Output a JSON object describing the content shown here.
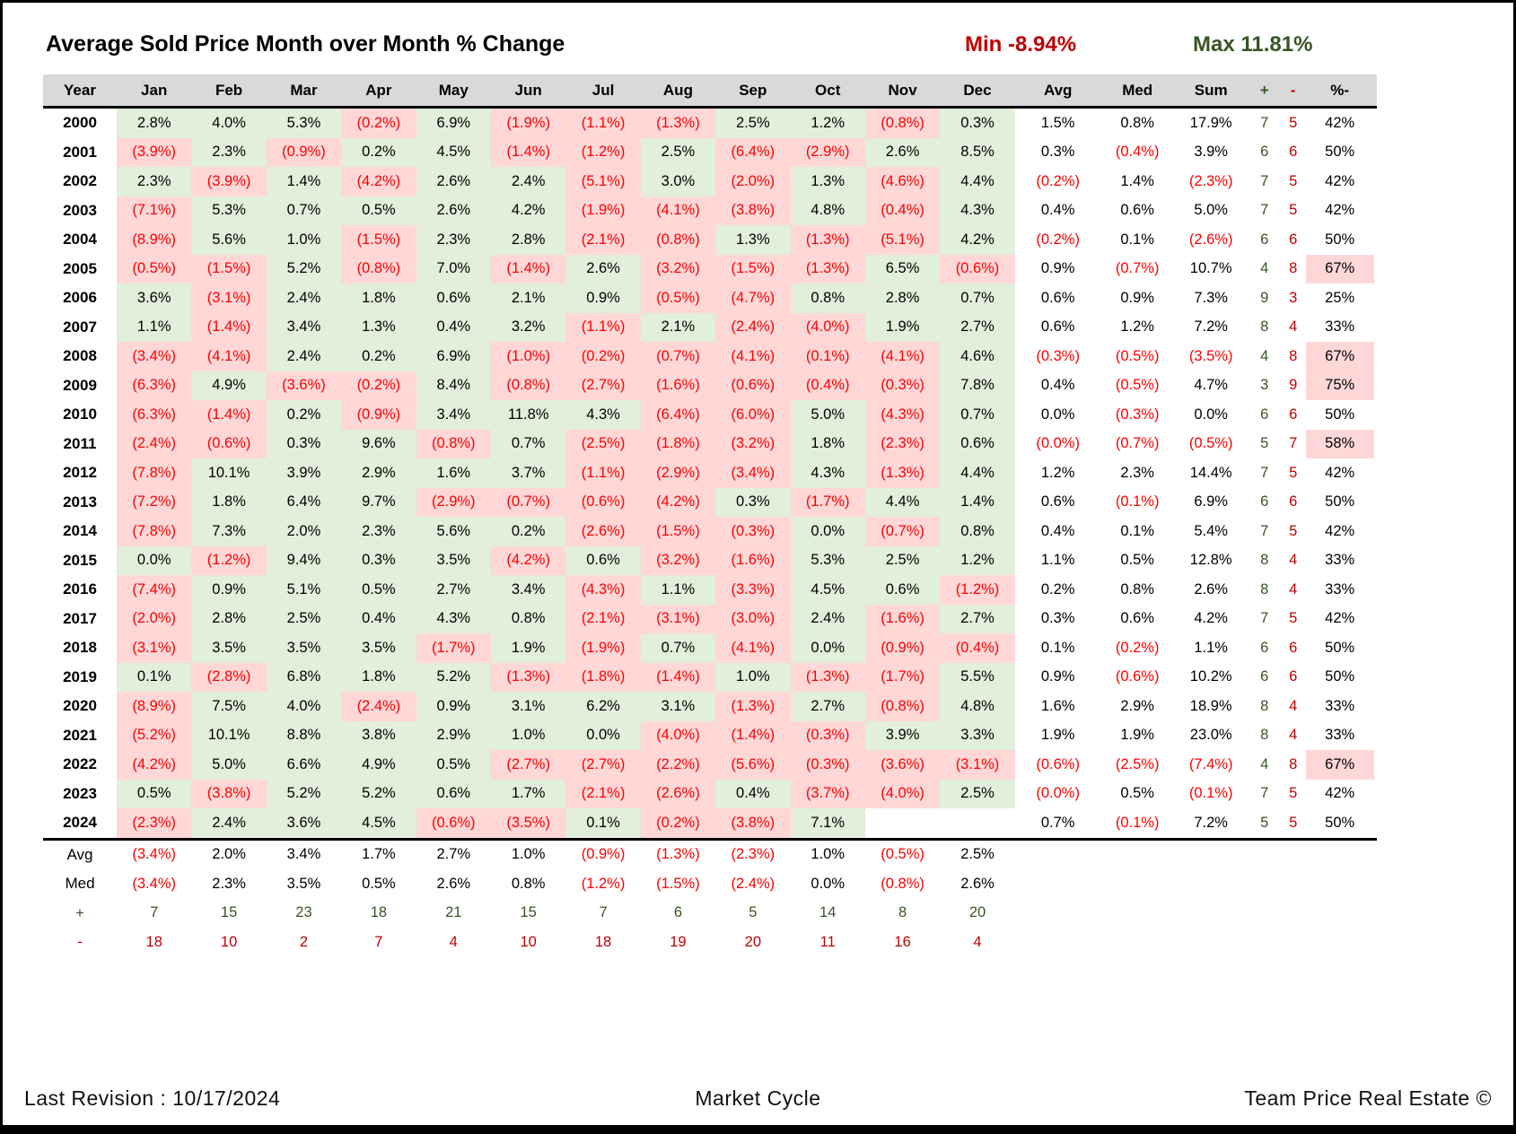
{
  "title": "Average Sold Price Month over Month % Change",
  "stats": {
    "min_label": "Min",
    "min_value": "-8.94%",
    "max_label": "Max",
    "max_value": "11.81%"
  },
  "colors": {
    "positive_bg": "#e2efda",
    "negative_bg": "#ffd7d7",
    "negative_text": "#ff0000",
    "plus_count": "#375623",
    "minus_count": "#c00000",
    "header_bg": "#d9d9d9",
    "min_color": "#c00000",
    "max_color": "#375623"
  },
  "chart_data": {
    "type": "table",
    "columns": [
      "Year",
      "Jan",
      "Feb",
      "Mar",
      "Apr",
      "May",
      "Jun",
      "Jul",
      "Aug",
      "Sep",
      "Oct",
      "Nov",
      "Dec",
      "Avg",
      "Med",
      "Sum",
      "+",
      "-",
      "%-"
    ],
    "rows": [
      {
        "year": "2000",
        "months": [
          "2.8%",
          "4.0%",
          "5.3%",
          "(0.2%)",
          "6.9%",
          "(1.9%)",
          "(1.1%)",
          "(1.3%)",
          "2.5%",
          "1.2%",
          "(0.8%)",
          "0.3%"
        ],
        "avg": "1.5%",
        "med": "0.8%",
        "sum": "17.9%",
        "plus": "7",
        "minus": "5",
        "pct_minus": "42%",
        "pct_minus_highlight": false
      },
      {
        "year": "2001",
        "months": [
          "(3.9%)",
          "2.3%",
          "(0.9%)",
          "0.2%",
          "4.5%",
          "(1.4%)",
          "(1.2%)",
          "2.5%",
          "(6.4%)",
          "(2.9%)",
          "2.6%",
          "8.5%"
        ],
        "avg": "0.3%",
        "med": "(0.4%)",
        "sum": "3.9%",
        "plus": "6",
        "minus": "6",
        "pct_minus": "50%",
        "pct_minus_highlight": false
      },
      {
        "year": "2002",
        "months": [
          "2.3%",
          "(3.9%)",
          "1.4%",
          "(4.2%)",
          "2.6%",
          "2.4%",
          "(5.1%)",
          "3.0%",
          "(2.0%)",
          "1.3%",
          "(4.6%)",
          "4.4%"
        ],
        "avg": "(0.2%)",
        "med": "1.4%",
        "sum": "(2.3%)",
        "plus": "7",
        "minus": "5",
        "pct_minus": "42%",
        "pct_minus_highlight": false
      },
      {
        "year": "2003",
        "months": [
          "(7.1%)",
          "5.3%",
          "0.7%",
          "0.5%",
          "2.6%",
          "4.2%",
          "(1.9%)",
          "(4.1%)",
          "(3.8%)",
          "4.8%",
          "(0.4%)",
          "4.3%"
        ],
        "avg": "0.4%",
        "med": "0.6%",
        "sum": "5.0%",
        "plus": "7",
        "minus": "5",
        "pct_minus": "42%",
        "pct_minus_highlight": false
      },
      {
        "year": "2004",
        "months": [
          "(8.9%)",
          "5.6%",
          "1.0%",
          "(1.5%)",
          "2.3%",
          "2.8%",
          "(2.1%)",
          "(0.8%)",
          "1.3%",
          "(1.3%)",
          "(5.1%)",
          "4.2%"
        ],
        "avg": "(0.2%)",
        "med": "0.1%",
        "sum": "(2.6%)",
        "plus": "6",
        "minus": "6",
        "pct_minus": "50%",
        "pct_minus_highlight": false
      },
      {
        "year": "2005",
        "months": [
          "(0.5%)",
          "(1.5%)",
          "5.2%",
          "(0.8%)",
          "7.0%",
          "(1.4%)",
          "2.6%",
          "(3.2%)",
          "(1.5%)",
          "(1.3%)",
          "6.5%",
          "(0.6%)"
        ],
        "avg": "0.9%",
        "med": "(0.7%)",
        "sum": "10.7%",
        "plus": "4",
        "minus": "8",
        "pct_minus": "67%",
        "pct_minus_highlight": true
      },
      {
        "year": "2006",
        "months": [
          "3.6%",
          "(3.1%)",
          "2.4%",
          "1.8%",
          "0.6%",
          "2.1%",
          "0.9%",
          "(0.5%)",
          "(4.7%)",
          "0.8%",
          "2.8%",
          "0.7%"
        ],
        "avg": "0.6%",
        "med": "0.9%",
        "sum": "7.3%",
        "plus": "9",
        "minus": "3",
        "pct_minus": "25%",
        "pct_minus_highlight": false
      },
      {
        "year": "2007",
        "months": [
          "1.1%",
          "(1.4%)",
          "3.4%",
          "1.3%",
          "0.4%",
          "3.2%",
          "(1.1%)",
          "2.1%",
          "(2.4%)",
          "(4.0%)",
          "1.9%",
          "2.7%"
        ],
        "avg": "0.6%",
        "med": "1.2%",
        "sum": "7.2%",
        "plus": "8",
        "minus": "4",
        "pct_minus": "33%",
        "pct_minus_highlight": false
      },
      {
        "year": "2008",
        "months": [
          "(3.4%)",
          "(4.1%)",
          "2.4%",
          "0.2%",
          "6.9%",
          "(1.0%)",
          "(0.2%)",
          "(0.7%)",
          "(4.1%)",
          "(0.1%)",
          "(4.1%)",
          "4.6%"
        ],
        "avg": "(0.3%)",
        "med": "(0.5%)",
        "sum": "(3.5%)",
        "plus": "4",
        "minus": "8",
        "pct_minus": "67%",
        "pct_minus_highlight": true
      },
      {
        "year": "2009",
        "months": [
          "(6.3%)",
          "4.9%",
          "(3.6%)",
          "(0.2%)",
          "8.4%",
          "(0.8%)",
          "(2.7%)",
          "(1.6%)",
          "(0.6%)",
          "(0.4%)",
          "(0.3%)",
          "7.8%"
        ],
        "avg": "0.4%",
        "med": "(0.5%)",
        "sum": "4.7%",
        "plus": "3",
        "minus": "9",
        "pct_minus": "75%",
        "pct_minus_highlight": true
      },
      {
        "year": "2010",
        "months": [
          "(6.3%)",
          "(1.4%)",
          "0.2%",
          "(0.9%)",
          "3.4%",
          "11.8%",
          "4.3%",
          "(6.4%)",
          "(6.0%)",
          "5.0%",
          "(4.3%)",
          "0.7%"
        ],
        "avg": "0.0%",
        "med": "(0.3%)",
        "sum": "0.0%",
        "plus": "6",
        "minus": "6",
        "pct_minus": "50%",
        "pct_minus_highlight": false
      },
      {
        "year": "2011",
        "months": [
          "(2.4%)",
          "(0.6%)",
          "0.3%",
          "9.6%",
          "(0.8%)",
          "0.7%",
          "(2.5%)",
          "(1.8%)",
          "(3.2%)",
          "1.8%",
          "(2.3%)",
          "0.6%"
        ],
        "avg": "(0.0%)",
        "med": "(0.7%)",
        "sum": "(0.5%)",
        "plus": "5",
        "minus": "7",
        "pct_minus": "58%",
        "pct_minus_highlight": true
      },
      {
        "year": "2012",
        "months": [
          "(7.8%)",
          "10.1%",
          "3.9%",
          "2.9%",
          "1.6%",
          "3.7%",
          "(1.1%)",
          "(2.9%)",
          "(3.4%)",
          "4.3%",
          "(1.3%)",
          "4.4%"
        ],
        "avg": "1.2%",
        "med": "2.3%",
        "sum": "14.4%",
        "plus": "7",
        "minus": "5",
        "pct_minus": "42%",
        "pct_minus_highlight": false
      },
      {
        "year": "2013",
        "months": [
          "(7.2%)",
          "1.8%",
          "6.4%",
          "9.7%",
          "(2.9%)",
          "(0.7%)",
          "(0.6%)",
          "(4.2%)",
          "0.3%",
          "(1.7%)",
          "4.4%",
          "1.4%"
        ],
        "avg": "0.6%",
        "med": "(0.1%)",
        "sum": "6.9%",
        "plus": "6",
        "minus": "6",
        "pct_minus": "50%",
        "pct_minus_highlight": false
      },
      {
        "year": "2014",
        "months": [
          "(7.8%)",
          "7.3%",
          "2.0%",
          "2.3%",
          "5.6%",
          "0.2%",
          "(2.6%)",
          "(1.5%)",
          "(0.3%)",
          "0.0%",
          "(0.7%)",
          "0.8%"
        ],
        "avg": "0.4%",
        "med": "0.1%",
        "sum": "5.4%",
        "plus": "7",
        "minus": "5",
        "pct_minus": "42%",
        "pct_minus_highlight": false
      },
      {
        "year": "2015",
        "months": [
          "0.0%",
          "(1.2%)",
          "9.4%",
          "0.3%",
          "3.5%",
          "(4.2%)",
          "0.6%",
          "(3.2%)",
          "(1.6%)",
          "5.3%",
          "2.5%",
          "1.2%"
        ],
        "avg": "1.1%",
        "med": "0.5%",
        "sum": "12.8%",
        "plus": "8",
        "minus": "4",
        "pct_minus": "33%",
        "pct_minus_highlight": false
      },
      {
        "year": "2016",
        "months": [
          "(7.4%)",
          "0.9%",
          "5.1%",
          "0.5%",
          "2.7%",
          "3.4%",
          "(4.3%)",
          "1.1%",
          "(3.3%)",
          "4.5%",
          "0.6%",
          "(1.2%)"
        ],
        "avg": "0.2%",
        "med": "0.8%",
        "sum": "2.6%",
        "plus": "8",
        "minus": "4",
        "pct_minus": "33%",
        "pct_minus_highlight": false
      },
      {
        "year": "2017",
        "months": [
          "(2.0%)",
          "2.8%",
          "2.5%",
          "0.4%",
          "4.3%",
          "0.8%",
          "(2.1%)",
          "(3.1%)",
          "(3.0%)",
          "2.4%",
          "(1.6%)",
          "2.7%"
        ],
        "avg": "0.3%",
        "med": "0.6%",
        "sum": "4.2%",
        "plus": "7",
        "minus": "5",
        "pct_minus": "42%",
        "pct_minus_highlight": false
      },
      {
        "year": "2018",
        "months": [
          "(3.1%)",
          "3.5%",
          "3.5%",
          "3.5%",
          "(1.7%)",
          "1.9%",
          "(1.9%)",
          "0.7%",
          "(4.1%)",
          "0.0%",
          "(0.9%)",
          "(0.4%)"
        ],
        "avg": "0.1%",
        "med": "(0.2%)",
        "sum": "1.1%",
        "plus": "6",
        "minus": "6",
        "pct_minus": "50%",
        "pct_minus_highlight": false
      },
      {
        "year": "2019",
        "months": [
          "0.1%",
          "(2.8%)",
          "6.8%",
          "1.8%",
          "5.2%",
          "(1.3%)",
          "(1.8%)",
          "(1.4%)",
          "1.0%",
          "(1.3%)",
          "(1.7%)",
          "5.5%"
        ],
        "avg": "0.9%",
        "med": "(0.6%)",
        "sum": "10.2%",
        "plus": "6",
        "minus": "6",
        "pct_minus": "50%",
        "pct_minus_highlight": false
      },
      {
        "year": "2020",
        "months": [
          "(8.9%)",
          "7.5%",
          "4.0%",
          "(2.4%)",
          "0.9%",
          "3.1%",
          "6.2%",
          "3.1%",
          "(1.3%)",
          "2.7%",
          "(0.8%)",
          "4.8%"
        ],
        "avg": "1.6%",
        "med": "2.9%",
        "sum": "18.9%",
        "plus": "8",
        "minus": "4",
        "pct_minus": "33%",
        "pct_minus_highlight": false
      },
      {
        "year": "2021",
        "months": [
          "(5.2%)",
          "10.1%",
          "8.8%",
          "3.8%",
          "2.9%",
          "1.0%",
          "0.0%",
          "(4.0%)",
          "(1.4%)",
          "(0.3%)",
          "3.9%",
          "3.3%"
        ],
        "avg": "1.9%",
        "med": "1.9%",
        "sum": "23.0%",
        "plus": "8",
        "minus": "4",
        "pct_minus": "33%",
        "pct_minus_highlight": false
      },
      {
        "year": "2022",
        "months": [
          "(4.2%)",
          "5.0%",
          "6.6%",
          "4.9%",
          "0.5%",
          "(2.7%)",
          "(2.7%)",
          "(2.2%)",
          "(5.6%)",
          "(0.3%)",
          "(3.6%)",
          "(3.1%)"
        ],
        "avg": "(0.6%)",
        "med": "(2.5%)",
        "sum": "(7.4%)",
        "plus": "4",
        "minus": "8",
        "pct_minus": "67%",
        "pct_minus_highlight": true
      },
      {
        "year": "2023",
        "months": [
          "0.5%",
          "(3.8%)",
          "5.2%",
          "5.2%",
          "0.6%",
          "1.7%",
          "(2.1%)",
          "(2.6%)",
          "0.4%",
          "(3.7%)",
          "(4.0%)",
          "2.5%"
        ],
        "avg": "(0.0%)",
        "med": "0.5%",
        "sum": "(0.1%)",
        "plus": "7",
        "minus": "5",
        "pct_minus": "42%",
        "pct_minus_highlight": false
      },
      {
        "year": "2024",
        "months": [
          "(2.3%)",
          "2.4%",
          "3.6%",
          "4.5%",
          "(0.6%)",
          "(3.5%)",
          "0.1%",
          "(0.2%)",
          "(3.8%)",
          "7.1%",
          "",
          ""
        ],
        "avg": "0.7%",
        "med": "(0.1%)",
        "sum": "7.2%",
        "plus": "5",
        "minus": "5",
        "pct_minus": "50%",
        "pct_minus_highlight": false
      }
    ],
    "summary": [
      {
        "label": "Avg",
        "kind": "value",
        "values": [
          "(3.4%)",
          "2.0%",
          "3.4%",
          "1.7%",
          "2.7%",
          "1.0%",
          "(0.9%)",
          "(1.3%)",
          "(2.3%)",
          "1.0%",
          "(0.5%)",
          "2.5%"
        ]
      },
      {
        "label": "Med",
        "kind": "value",
        "values": [
          "(3.4%)",
          "2.3%",
          "3.5%",
          "0.5%",
          "2.6%",
          "0.8%",
          "(1.2%)",
          "(1.5%)",
          "(2.4%)",
          "0.0%",
          "(0.8%)",
          "2.6%"
        ]
      },
      {
        "label": "+",
        "kind": "plus",
        "values": [
          "7",
          "15",
          "23",
          "18",
          "21",
          "15",
          "7",
          "6",
          "5",
          "14",
          "8",
          "20"
        ]
      },
      {
        "label": "-",
        "kind": "minus",
        "values": [
          "18",
          "10",
          "2",
          "7",
          "4",
          "10",
          "18",
          "19",
          "20",
          "11",
          "16",
          "4"
        ]
      }
    ]
  },
  "footer": {
    "left": "Last Revision : 10/17/2024",
    "center": "Market Cycle",
    "right": "Team Price Real Estate ©"
  }
}
